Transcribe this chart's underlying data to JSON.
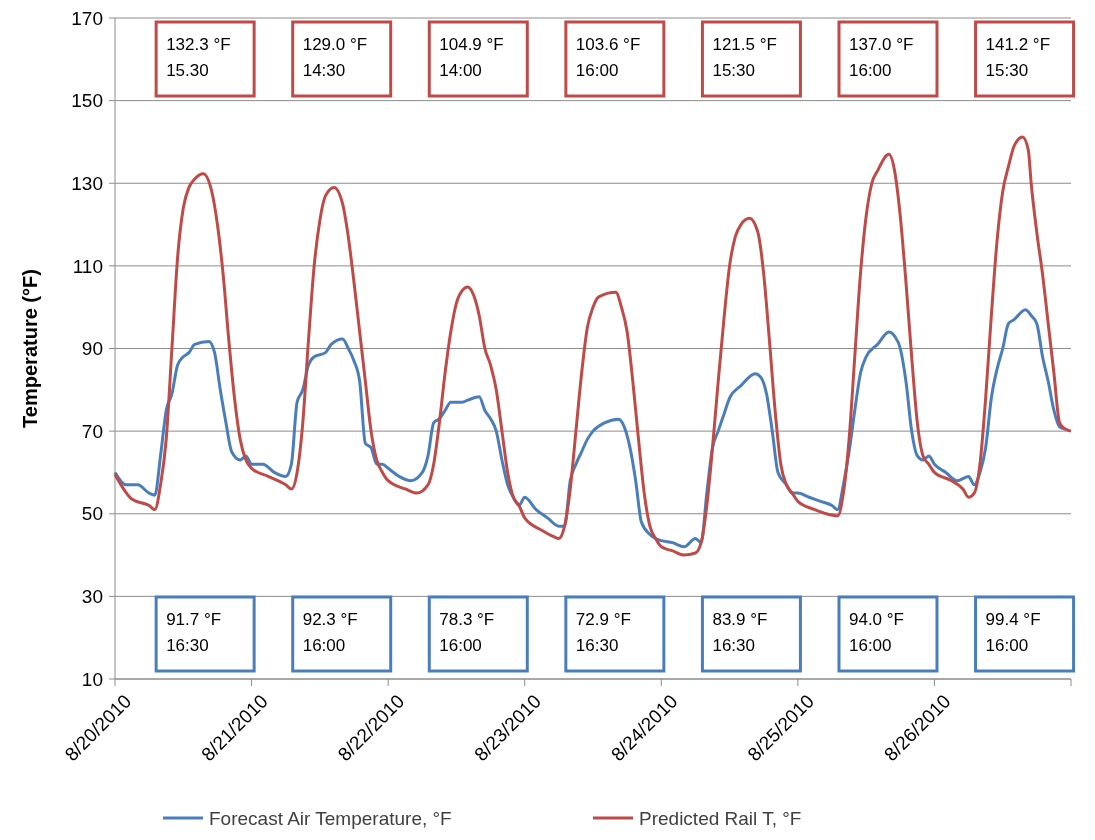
{
  "chart_data": {
    "type": "line",
    "ylabel": "Temperature  (°F)",
    "xlim": [
      "2010-08-20",
      "2010-08-27"
    ],
    "xticks": [
      {
        "value": "2010-08-20",
        "label": "8/20/2010"
      },
      {
        "value": "2010-08-21",
        "label": "8/21/2010"
      },
      {
        "value": "2010-08-22",
        "label": "8/22/2010"
      },
      {
        "value": "2010-08-23",
        "label": "8/23/2010"
      },
      {
        "value": "2010-08-24",
        "label": "8/24/2010"
      },
      {
        "value": "2010-08-25",
        "label": "8/25/2010"
      },
      {
        "value": "2010-08-26",
        "label": "8/26/2010"
      },
      {
        "value": "2010-08-27",
        "label": null
      }
    ],
    "ylim": [
      10,
      170
    ],
    "yticks": [
      10,
      30,
      50,
      70,
      90,
      110,
      130,
      150,
      170
    ],
    "grid": "y",
    "legend": "bottom",
    "series": [
      {
        "name": "Forecast Air Temperature, °F",
        "color": "#4a7ebb",
        "x": [
          "2010-08-20T00:00",
          "2010-08-20T02:00",
          "2010-08-20T04:00",
          "2010-08-20T06:00",
          "2010-08-20T07:00",
          "2010-08-20T08:00",
          "2010-08-20T09:00",
          "2010-08-20T10:00",
          "2010-08-20T11:00",
          "2010-08-20T12:00",
          "2010-08-20T13:00",
          "2010-08-20T14:00",
          "2010-08-20T16:30",
          "2010-08-20T17:30",
          "2010-08-20T18:30",
          "2010-08-20T19:30",
          "2010-08-20T20:30",
          "2010-08-20T22:00",
          "2010-08-20T23:00",
          "2010-08-21T00:00",
          "2010-08-21T02:00",
          "2010-08-21T04:00",
          "2010-08-21T06:00",
          "2010-08-21T07:00",
          "2010-08-21T08:00",
          "2010-08-21T09:00",
          "2010-08-21T10:00",
          "2010-08-21T11:00",
          "2010-08-21T13:00",
          "2010-08-21T14:00",
          "2010-08-21T16:00",
          "2010-08-21T17:00",
          "2010-08-21T18:00",
          "2010-08-21T19:00",
          "2010-08-21T20:00",
          "2010-08-21T21:00",
          "2010-08-21T22:00",
          "2010-08-21T23:00",
          "2010-08-22T00:00",
          "2010-08-22T02:00",
          "2010-08-22T04:00",
          "2010-08-22T06:00",
          "2010-08-22T07:00",
          "2010-08-22T08:00",
          "2010-08-22T09:00",
          "2010-08-22T10:00",
          "2010-08-22T11:00",
          "2010-08-22T13:00",
          "2010-08-22T14:00",
          "2010-08-22T16:00",
          "2010-08-22T17:00",
          "2010-08-22T18:00",
          "2010-08-22T19:00",
          "2010-08-22T20:00",
          "2010-08-22T21:00",
          "2010-08-22T22:00",
          "2010-08-22T23:00",
          "2010-08-23T00:00",
          "2010-08-23T02:00",
          "2010-08-23T04:00",
          "2010-08-23T06:00",
          "2010-08-23T07:00",
          "2010-08-23T08:00",
          "2010-08-23T09:00",
          "2010-08-23T10:00",
          "2010-08-23T11:00",
          "2010-08-23T12:00",
          "2010-08-23T14:00",
          "2010-08-23T16:30",
          "2010-08-23T17:30",
          "2010-08-23T18:30",
          "2010-08-23T19:30",
          "2010-08-23T20:30",
          "2010-08-23T22:00",
          "2010-08-23T23:00",
          "2010-08-24T00:00",
          "2010-08-24T02:00",
          "2010-08-24T04:00",
          "2010-08-24T06:00",
          "2010-08-24T07:00",
          "2010-08-24T08:00",
          "2010-08-24T09:00",
          "2010-08-24T10:00",
          "2010-08-24T11:00",
          "2010-08-24T12:00",
          "2010-08-24T14:00",
          "2010-08-24T16:30",
          "2010-08-24T17:30",
          "2010-08-24T18:30",
          "2010-08-24T19:30",
          "2010-08-24T20:30",
          "2010-08-24T22:00",
          "2010-08-24T23:00",
          "2010-08-25T00:00",
          "2010-08-25T02:00",
          "2010-08-25T04:00",
          "2010-08-25T06:00",
          "2010-08-25T07:00",
          "2010-08-25T08:00",
          "2010-08-25T09:00",
          "2010-08-25T10:00",
          "2010-08-25T11:00",
          "2010-08-25T12:00",
          "2010-08-25T14:00",
          "2010-08-25T16:00",
          "2010-08-25T17:00",
          "2010-08-25T18:00",
          "2010-08-25T19:00",
          "2010-08-25T20:00",
          "2010-08-25T21:00",
          "2010-08-25T22:00",
          "2010-08-25T23:00",
          "2010-08-26T00:00",
          "2010-08-26T02:00",
          "2010-08-26T04:00",
          "2010-08-26T06:00",
          "2010-08-26T07:00",
          "2010-08-26T08:00",
          "2010-08-26T09:00",
          "2010-08-26T10:00",
          "2010-08-26T11:00",
          "2010-08-26T12:00",
          "2010-08-26T13:00",
          "2010-08-26T14:00",
          "2010-08-26T16:00",
          "2010-08-26T17:00",
          "2010-08-26T18:00",
          "2010-08-26T19:00",
          "2010-08-26T20:00",
          "2010-08-26T21:00",
          "2010-08-26T22:00",
          "2010-08-26T23:00"
        ],
        "values": [
          60,
          57,
          57,
          55,
          54.5,
          64,
          75,
          79,
          86,
          88,
          89,
          91,
          91.7,
          89,
          80,
          72,
          65,
          63,
          64,
          62,
          62,
          60,
          59,
          62,
          77,
          80,
          86,
          88,
          89,
          91,
          92.3,
          90,
          87,
          82,
          67,
          66,
          62,
          62,
          61,
          59,
          58,
          60,
          64,
          72,
          73,
          75,
          77,
          77,
          77.5,
          78.3,
          75,
          73,
          70,
          63,
          57,
          54,
          52,
          54,
          51,
          49,
          47,
          47,
          58,
          62,
          65,
          68,
          70,
          72,
          72.9,
          71,
          66,
          58,
          48,
          45,
          44,
          43.5,
          43,
          42,
          44,
          43,
          55,
          66,
          70,
          74,
          78,
          81,
          83.9,
          83,
          79,
          70,
          60,
          57,
          55,
          55,
          54,
          53,
          52,
          51,
          57,
          65,
          75,
          84,
          88,
          91,
          94,
          93,
          90,
          82,
          70,
          64,
          63,
          64,
          62,
          60,
          58,
          59,
          57,
          60,
          66,
          78,
          85,
          90,
          96,
          97,
          99.4,
          98,
          96,
          88,
          82,
          75,
          71,
          70.5
        ]
      },
      {
        "name": "Predicted Rail T, °F",
        "color": "#be4b48",
        "x": [
          "2010-08-20T00:00",
          "2010-08-20T03:00",
          "2010-08-20T06:00",
          "2010-08-20T07:00",
          "2010-08-20T08:00",
          "2010-08-20T09:00",
          "2010-08-20T10:00",
          "2010-08-20T11:00",
          "2010-08-20T12:00",
          "2010-08-20T13:00",
          "2010-08-20T14:00",
          "2010-08-20T15:30",
          "2010-08-20T17:00",
          "2010-08-20T18:00",
          "2010-08-20T19:00",
          "2010-08-20T20:00",
          "2010-08-20T21:00",
          "2010-08-20T22:00",
          "2010-08-20T23:00",
          "2010-08-21T00:00",
          "2010-08-21T03:00",
          "2010-08-21T06:00",
          "2010-08-21T07:00",
          "2010-08-21T08:00",
          "2010-08-21T09:00",
          "2010-08-21T10:00",
          "2010-08-21T11:00",
          "2010-08-21T12:00",
          "2010-08-21T13:00",
          "2010-08-21T14:30",
          "2010-08-21T16:00",
          "2010-08-21T17:00",
          "2010-08-21T18:00",
          "2010-08-21T19:00",
          "2010-08-21T20:00",
          "2010-08-21T21:00",
          "2010-08-21T22:00",
          "2010-08-21T23:00",
          "2010-08-22T00:00",
          "2010-08-22T03:00",
          "2010-08-22T05:00",
          "2010-08-22T07:00",
          "2010-08-22T08:00",
          "2010-08-22T09:00",
          "2010-08-22T10:00",
          "2010-08-22T11:00",
          "2010-08-22T12:00",
          "2010-08-22T13:00",
          "2010-08-22T14:00",
          "2010-08-22T15:00",
          "2010-08-22T16:00",
          "2010-08-22T17:00",
          "2010-08-22T18:00",
          "2010-08-22T19:00",
          "2010-08-22T20:00",
          "2010-08-22T21:00",
          "2010-08-22T22:00",
          "2010-08-22T23:00",
          "2010-08-23T00:00",
          "2010-08-23T03:00",
          "2010-08-23T05:00",
          "2010-08-23T06:00",
          "2010-08-23T07:00",
          "2010-08-23T08:00",
          "2010-08-23T09:00",
          "2010-08-23T10:00",
          "2010-08-23T11:00",
          "2010-08-23T12:00",
          "2010-08-23T13:00",
          "2010-08-23T16:00",
          "2010-08-23T17:00",
          "2010-08-23T18:00",
          "2010-08-23T19:00",
          "2010-08-23T20:00",
          "2010-08-23T21:00",
          "2010-08-23T22:00",
          "2010-08-23T23:00",
          "2010-08-24T00:00",
          "2010-08-24T02:00",
          "2010-08-24T04:00",
          "2010-08-24T06:00",
          "2010-08-24T07:00",
          "2010-08-24T08:00",
          "2010-08-24T09:00",
          "2010-08-24T10:00",
          "2010-08-24T11:00",
          "2010-08-24T12:00",
          "2010-08-24T13:00",
          "2010-08-24T14:00",
          "2010-08-24T15:30",
          "2010-08-24T17:00",
          "2010-08-24T18:00",
          "2010-08-24T19:00",
          "2010-08-24T20:00",
          "2010-08-24T21:00",
          "2010-08-24T22:00",
          "2010-08-24T23:00",
          "2010-08-25T00:00",
          "2010-08-25T03:00",
          "2010-08-25T05:00",
          "2010-08-25T07:00",
          "2010-08-25T08:00",
          "2010-08-25T09:00",
          "2010-08-25T10:00",
          "2010-08-25T11:00",
          "2010-08-25T12:00",
          "2010-08-25T13:00",
          "2010-08-25T14:00",
          "2010-08-25T16:00",
          "2010-08-25T17:00",
          "2010-08-25T18:00",
          "2010-08-25T19:00",
          "2010-08-25T20:00",
          "2010-08-25T21:00",
          "2010-08-25T22:00",
          "2010-08-25T23:00",
          "2010-08-26T00:00",
          "2010-08-26T03:00",
          "2010-08-26T05:00",
          "2010-08-26T06:00",
          "2010-08-26T07:00",
          "2010-08-26T08:00",
          "2010-08-26T09:00",
          "2010-08-26T10:00",
          "2010-08-26T11:00",
          "2010-08-26T12:00",
          "2010-08-26T13:00",
          "2010-08-26T14:00",
          "2010-08-26T15:30",
          "2010-08-26T16:30",
          "2010-08-26T17:00",
          "2010-08-26T18:00",
          "2010-08-26T19:00",
          "2010-08-26T20:00",
          "2010-08-26T21:00",
          "2010-08-26T22:00",
          "2010-08-26T23:00",
          "2010-08-27T00:00"
        ],
        "values": [
          59.5,
          53.5,
          52,
          51,
          57,
          68,
          90,
          112,
          124,
          129,
          131,
          132.3,
          128,
          120,
          108,
          92,
          78,
          68,
          63,
          61,
          59,
          57,
          56,
          60,
          72,
          92,
          110,
          121,
          127,
          129,
          125,
          117,
          106,
          94,
          82,
          70,
          63,
          60,
          58,
          56,
          55,
          57,
          62,
          72,
          84,
          94,
          101,
          104,
          104.9,
          103,
          98,
          90,
          86,
          80,
          70,
          60,
          54,
          52,
          49,
          46,
          44.5,
          44,
          47,
          56,
          70,
          84,
          95,
          100,
          102.5,
          103.6,
          100,
          94,
          82,
          68,
          55,
          47,
          44,
          42,
          41,
          40,
          40.5,
          43,
          52,
          66,
          82,
          97,
          110,
          117,
          120,
          121.5,
          118,
          108,
          92,
          75,
          62,
          57,
          55,
          53,
          51,
          50,
          49.5,
          55,
          68,
          88,
          108,
          122,
          130,
          133,
          137,
          133,
          122,
          106,
          88,
          72,
          64,
          62,
          60,
          58,
          56,
          54,
          55,
          62,
          78,
          98,
          116,
          128,
          134,
          139,
          141.2,
          138,
          130,
          118,
          108,
          96,
          84,
          72,
          70.5,
          70
        ]
      }
    ],
    "annotations": [
      "132.3 °F\n15.30",
      "129.0 °F\n14:30",
      "104.9 °F\n14:00",
      "103.6 °F\n16:00",
      "121.5 °F\n15:30",
      "137.0 °F\n16:00",
      "141.2 °F\n15:30",
      "91.7 °F\n16:30",
      "92.3 °F\n16:00",
      "78.3 °F\n16:00",
      "72.9 °F\n16:30",
      "83.9 °F\n16:30",
      "94.0 °F\n16:00",
      "99.4 °F\n16:00"
    ]
  }
}
